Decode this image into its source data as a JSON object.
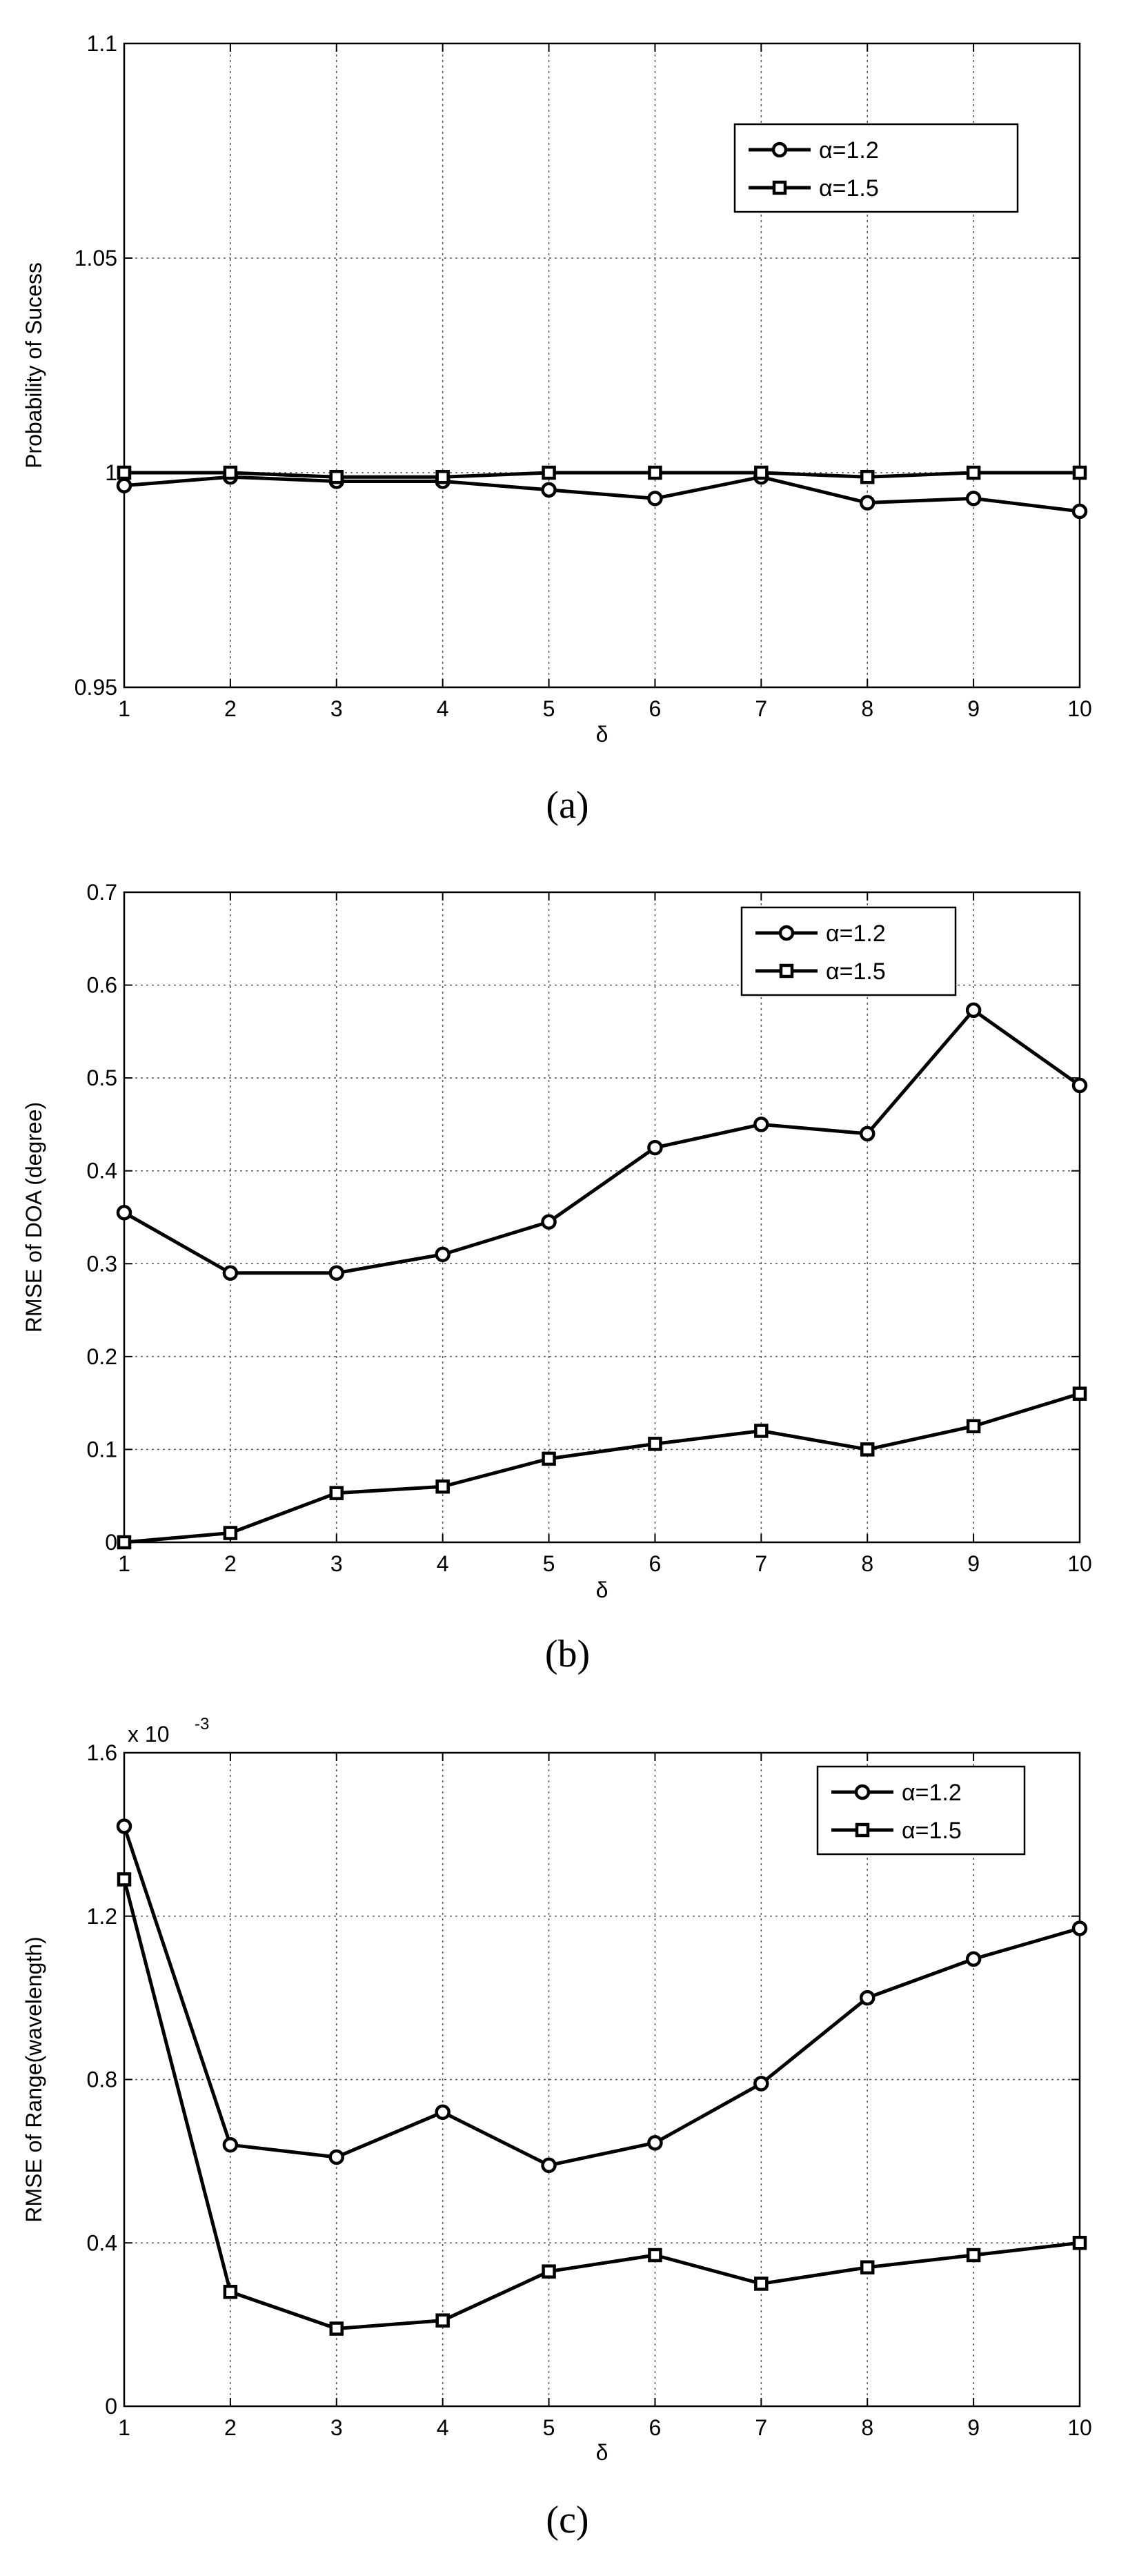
{
  "chart_data": [
    {
      "type": "line",
      "panel_label": "(a)",
      "title": "",
      "xlabel": "δ",
      "ylabel": "Probability of Sucess",
      "xlim": [
        1,
        10
      ],
      "ylim": [
        0.95,
        1.1
      ],
      "x": [
        1,
        2,
        3,
        4,
        5,
        6,
        7,
        8,
        9,
        10
      ],
      "x_ticks": [
        "1",
        "2",
        "3",
        "4",
        "5",
        "6",
        "7",
        "8",
        "9",
        "10"
      ],
      "y_ticks": [
        {
          "value": 0.95,
          "label": "0.95"
        },
        {
          "value": 1.0,
          "label": "1"
        },
        {
          "value": 1.05,
          "label": "1.05"
        },
        {
          "value": 1.1,
          "label": "1.1"
        }
      ],
      "grid": true,
      "legend_position": "top-right",
      "series": [
        {
          "name": "α=1.2",
          "marker": "circle",
          "values": [
            0.997,
            0.999,
            0.998,
            0.998,
            0.996,
            0.994,
            0.999,
            0.993,
            0.994,
            0.991
          ]
        },
        {
          "name": "α=1.5",
          "marker": "square",
          "values": [
            1.0,
            1.0,
            0.999,
            0.999,
            1.0,
            1.0,
            1.0,
            0.999,
            1.0,
            1.0
          ]
        }
      ]
    },
    {
      "type": "line",
      "panel_label": "(b)",
      "title": "",
      "xlabel": "δ",
      "ylabel": "RMSE of DOA (degree)",
      "xlim": [
        1,
        10
      ],
      "ylim": [
        0,
        0.7
      ],
      "x": [
        1,
        2,
        3,
        4,
        5,
        6,
        7,
        8,
        9,
        10
      ],
      "x_ticks": [
        "1",
        "2",
        "3",
        "4",
        "5",
        "6",
        "7",
        "8",
        "9",
        "10"
      ],
      "y_ticks": [
        {
          "value": 0,
          "label": "0"
        },
        {
          "value": 0.1,
          "label": "0.1"
        },
        {
          "value": 0.2,
          "label": "0.2"
        },
        {
          "value": 0.3,
          "label": "0.3"
        },
        {
          "value": 0.4,
          "label": "0.4"
        },
        {
          "value": 0.5,
          "label": "0.5"
        },
        {
          "value": 0.6,
          "label": "0.6"
        },
        {
          "value": 0.7,
          "label": "0.7"
        }
      ],
      "grid": true,
      "legend_position": "top-right",
      "series": [
        {
          "name": "α=1.2",
          "marker": "circle",
          "values": [
            0.355,
            0.29,
            0.29,
            0.31,
            0.345,
            0.425,
            0.45,
            0.44,
            0.573,
            0.492
          ]
        },
        {
          "name": "α=1.5",
          "marker": "square",
          "values": [
            0.0,
            0.01,
            0.053,
            0.06,
            0.09,
            0.106,
            0.12,
            0.1,
            0.125,
            0.16
          ]
        }
      ]
    },
    {
      "type": "line",
      "panel_label": "(c)",
      "title": "",
      "xlabel": "δ",
      "ylabel": "RMSE of Range(wavelength)",
      "y_exponent_base": "x 10",
      "y_exponent_power": "-3",
      "xlim": [
        1,
        10
      ],
      "ylim": [
        0,
        1.6
      ],
      "x": [
        1,
        2,
        3,
        4,
        5,
        6,
        7,
        8,
        9,
        10
      ],
      "x_ticks": [
        "1",
        "2",
        "3",
        "4",
        "5",
        "6",
        "7",
        "8",
        "9",
        "10"
      ],
      "y_ticks": [
        {
          "value": 0,
          "label": "0"
        },
        {
          "value": 0.4,
          "label": "0.4"
        },
        {
          "value": 0.8,
          "label": "0.8"
        },
        {
          "value": 1.2,
          "label": "1.2"
        },
        {
          "value": 1.6,
          "label": "1.6"
        }
      ],
      "grid": true,
      "legend_position": "top-right",
      "series": [
        {
          "name": "α=1.2",
          "marker": "circle",
          "values": [
            1.42,
            0.64,
            0.61,
            0.72,
            0.59,
            0.645,
            0.79,
            1.0,
            1.095,
            1.17
          ]
        },
        {
          "name": "α=1.5",
          "marker": "square",
          "values": [
            1.29,
            0.28,
            0.19,
            0.21,
            0.33,
            0.37,
            0.3,
            0.34,
            0.37,
            0.4
          ]
        }
      ]
    }
  ]
}
